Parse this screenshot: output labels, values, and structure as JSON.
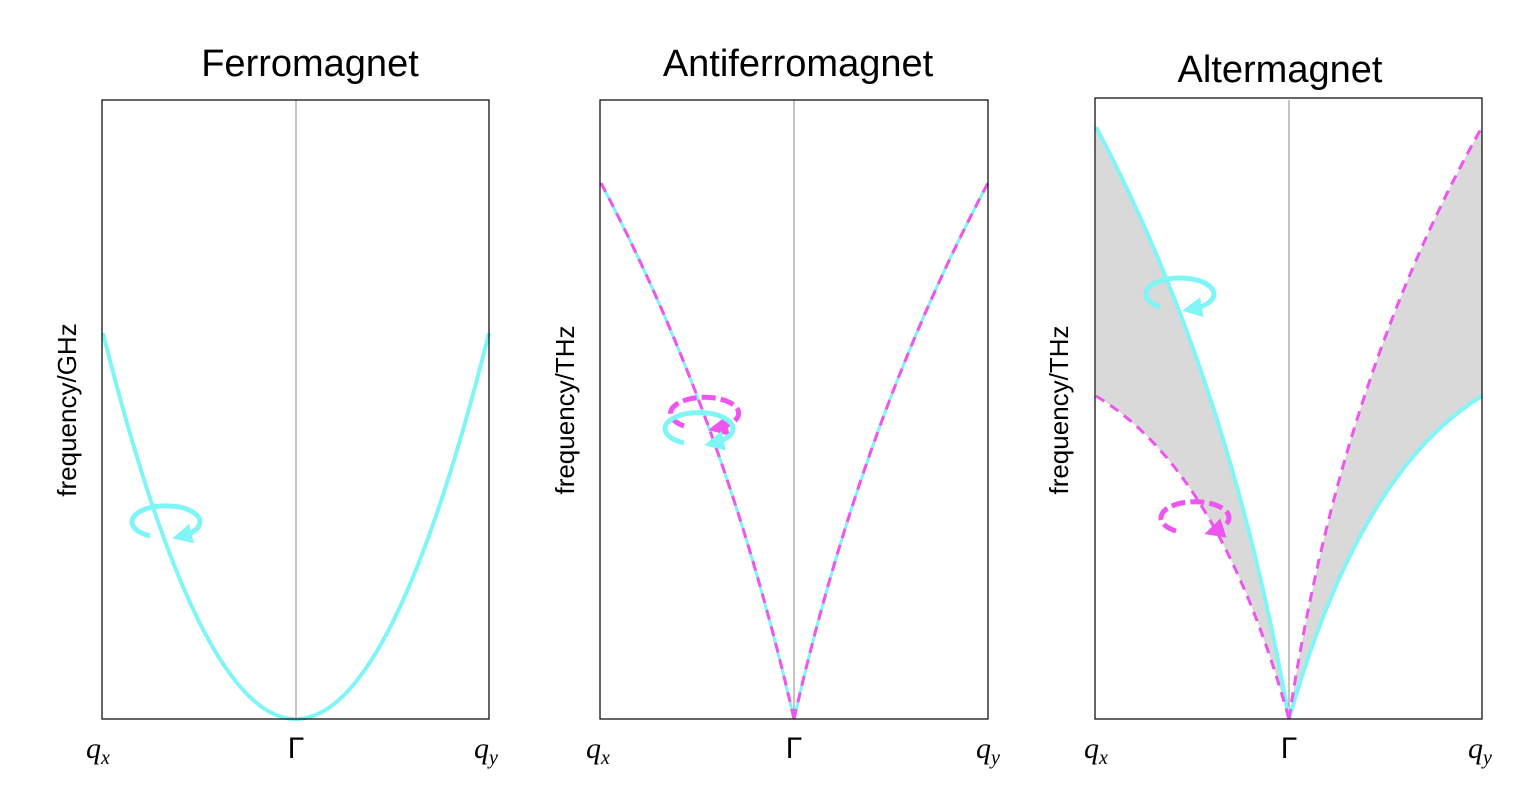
{
  "colors": {
    "cyan": "#7ff5f5",
    "magenta": "#ee55ee",
    "fill_gray": "#d9d9d9",
    "axis": "#000000",
    "center_line": "#888888"
  },
  "panels": [
    {
      "title": "Ferromagnet",
      "ylabel": "frequency/GHz",
      "ticks": {
        "left_base": "q",
        "left_sub": "x",
        "center": "Γ",
        "right_base": "q",
        "right_sub": "y"
      },
      "dispersion": "quadratic",
      "icons": [
        "cyan-precession-arrow"
      ]
    },
    {
      "title": "Antiferromagnet",
      "ylabel": "frequency/THz",
      "ticks": {
        "left_base": "q",
        "left_sub": "x",
        "center": "Γ",
        "right_base": "q",
        "right_sub": "y"
      },
      "dispersion": "degenerate linear",
      "icons": [
        "magenta-precession-arrow",
        "cyan-precession-arrow"
      ]
    },
    {
      "title": "Altermagnet",
      "ylabel": "frequency/THz",
      "ticks": {
        "left_base": "q",
        "left_sub": "x",
        "center": "Γ",
        "right_base": "q",
        "right_sub": "y"
      },
      "dispersion": "split linear with shaded gap",
      "icons": [
        "cyan-precession-arrow",
        "magenta-precession-arrow"
      ]
    }
  ]
}
